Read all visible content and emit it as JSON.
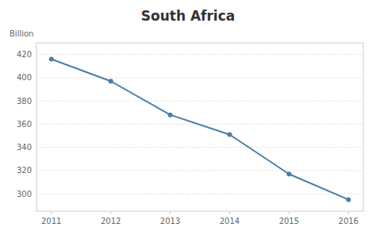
{
  "chart_data": {
    "type": "line",
    "title": "South Africa",
    "ylabel": "Billion",
    "x": [
      2011,
      2012,
      2013,
      2014,
      2015,
      2016
    ],
    "values": [
      416,
      397,
      368,
      351,
      317,
      295
    ],
    "xlim": [
      2010.75,
      2016.25
    ],
    "xticks": [
      2011,
      2012,
      2013,
      2014,
      2015,
      2016
    ],
    "ylim": [
      285,
      430
    ],
    "yticks": [
      300,
      320,
      340,
      360,
      380,
      400,
      420
    ],
    "color": "#4a7fa5",
    "marker": "circle",
    "grid": true
  }
}
